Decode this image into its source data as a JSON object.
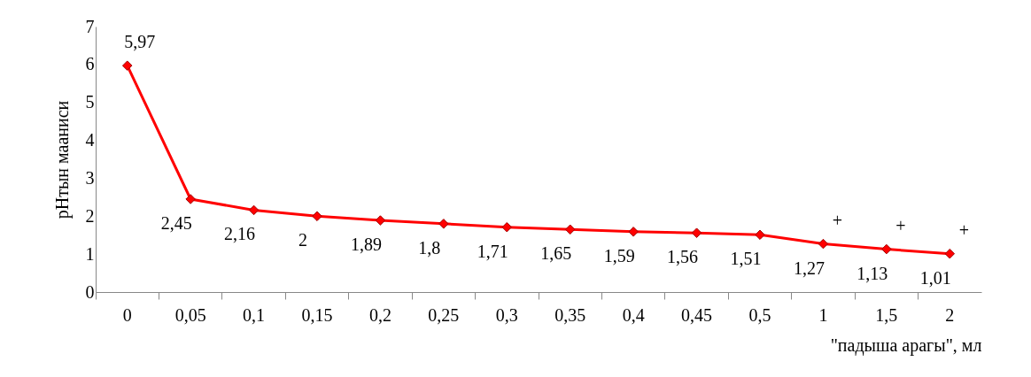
{
  "chart_data": {
    "type": "line",
    "xlabel": "\"падыша арагы\", мл",
    "ylabel": "pHтын мааниси",
    "categories": [
      "0",
      "0,05",
      "0,1",
      "0,15",
      "0,2",
      "0,25",
      "0,3",
      "0,35",
      "0,4",
      "0,45",
      "0,5",
      "1",
      "1,5",
      "2"
    ],
    "series": [
      {
        "color": "#ff0000",
        "values": [
          5.97,
          2.45,
          2.16,
          2,
          1.89,
          1.8,
          1.71,
          1.65,
          1.59,
          1.56,
          1.51,
          1.27,
          1.13,
          1.01
        ]
      }
    ],
    "value_labels": [
      "5,97",
      "2,45",
      "2,16",
      "2",
      "1,89",
      "1,8",
      "1,71",
      "1,65",
      "1,59",
      "1,56",
      "1,51",
      "1,27",
      "1,13",
      "1,01"
    ],
    "annotations": [
      "+",
      "+",
      "+"
    ],
    "ylim": [
      0,
      7
    ],
    "yticks": [
      0,
      1,
      2,
      3,
      4,
      5,
      6,
      7
    ],
    "grid": false,
    "marker": "diamond",
    "line_style": "solid"
  }
}
